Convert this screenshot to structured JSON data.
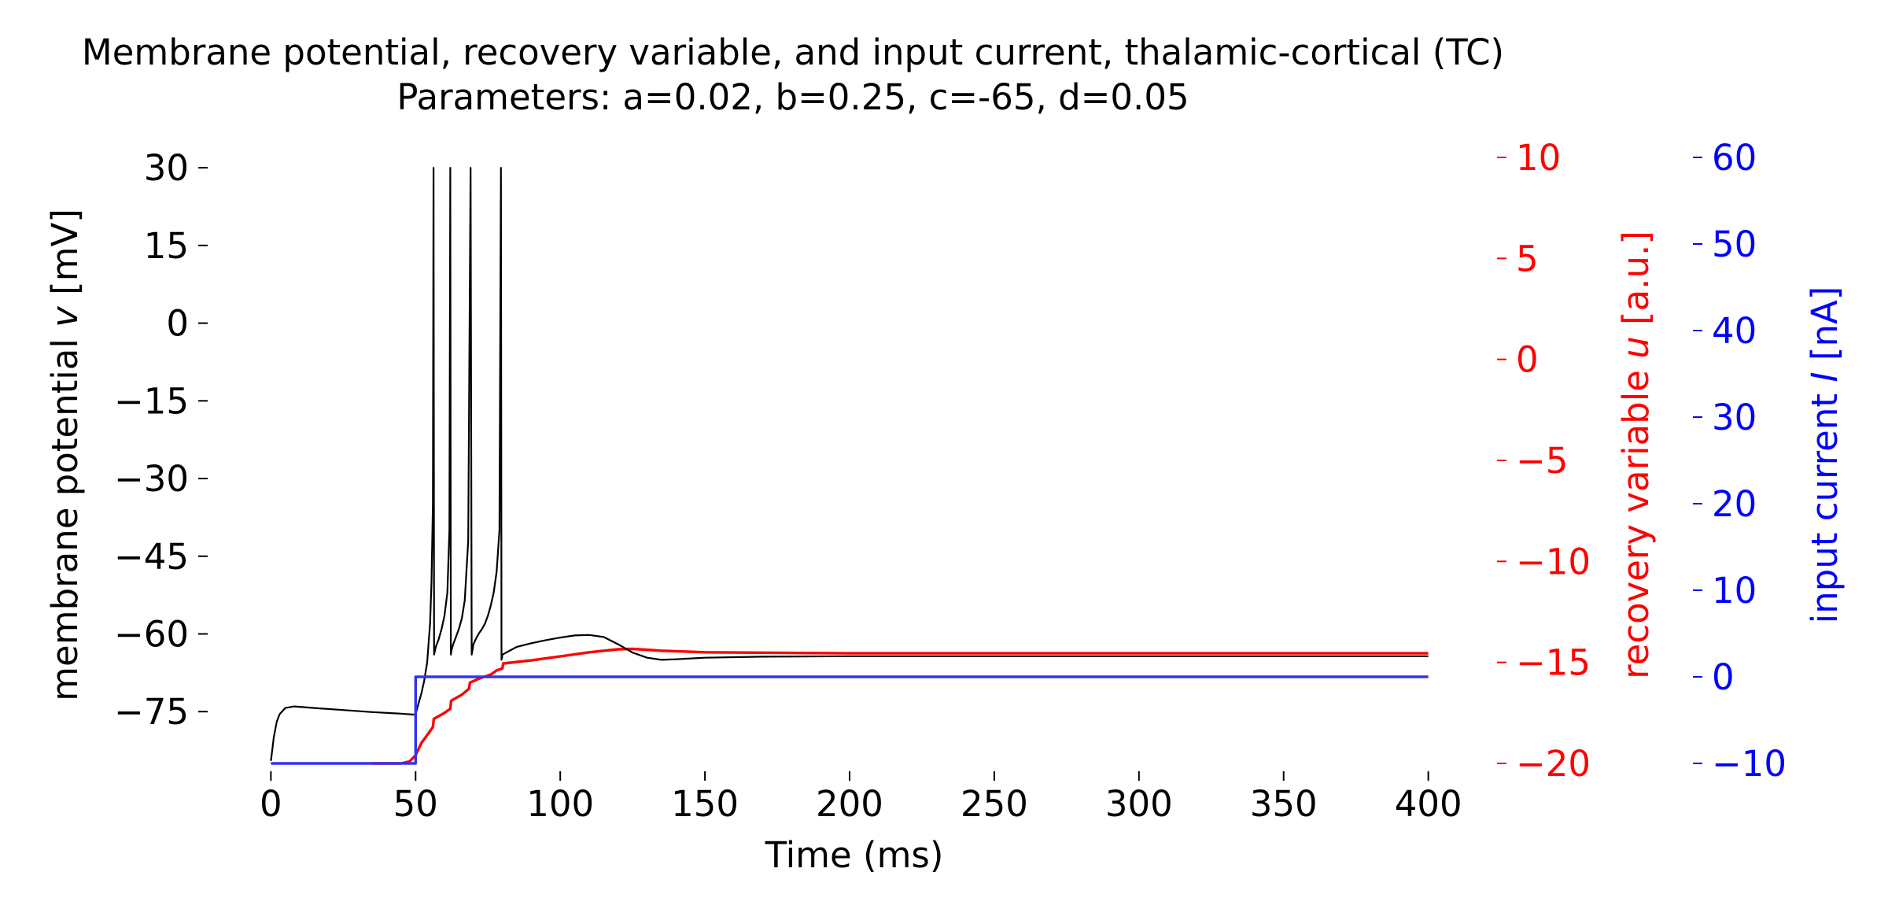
{
  "chart_data": {
    "type": "line",
    "title": "Membrane potential, recovery variable, and input current, thalamic-cortical (TC)",
    "subtitle": "Parameters: a=0.02, b=0.25, c=-65, d=0.05",
    "xlabel": "Time (ms)",
    "xlim": [
      -2,
      402
    ],
    "xticks": [
      0,
      50,
      100,
      150,
      200,
      250,
      300,
      350,
      400
    ],
    "grid": false,
    "axes": {
      "v": {
        "label_prefix": "membrane potential ",
        "label_var": "v",
        "label_suffix": " [mV]",
        "ylim": [
          -85,
          32
        ],
        "ticks": [
          30,
          15,
          0,
          -15,
          -30,
          -45,
          -60,
          -75
        ],
        "color": "#000000"
      },
      "u": {
        "label_prefix": "recovery variable ",
        "label_var": "u",
        "label_suffix": " [a.u.]",
        "ylim": [
          -20,
          10
        ],
        "ticks": [
          10,
          5,
          0,
          -5,
          -10,
          -15,
          -20
        ],
        "color": "#ff0000"
      },
      "I": {
        "label_prefix": "input current ",
        "label_var": "I",
        "label_suffix": " [nA]",
        "ylim": [
          -10,
          60
        ],
        "ticks": [
          60,
          50,
          40,
          30,
          20,
          10,
          0,
          -10
        ],
        "color": "#0000ff"
      }
    },
    "series": [
      {
        "name": "membrane potential v",
        "axis": "v",
        "color": "#000000",
        "x": [
          0,
          1,
          2,
          3,
          5,
          8,
          15,
          25,
          35,
          45,
          49.9,
          50,
          51,
          52,
          53,
          54,
          55,
          55.5,
          56,
          56.2,
          56.4,
          57,
          58,
          59,
          60,
          61,
          61.7,
          62,
          62.2,
          62.4,
          63,
          64,
          65,
          66,
          67,
          68.2,
          69,
          69.4,
          69.6,
          70,
          71,
          72,
          73,
          74,
          75,
          76,
          77,
          78,
          79,
          79.5,
          79.7,
          79.9,
          80,
          85,
          90,
          95,
          100,
          105,
          110,
          115,
          120,
          125,
          130,
          135,
          140,
          150,
          170,
          200,
          250,
          300,
          350,
          400
        ],
        "y": [
          -84.5,
          -80,
          -77,
          -75.5,
          -74.3,
          -74,
          -74.3,
          -74.7,
          -75.1,
          -75.4,
          -75.6,
          -75.5,
          -73.5,
          -71.5,
          -69,
          -65.5,
          -58,
          -50,
          -35,
          30,
          -64,
          -62.5,
          -61,
          -59,
          -56.5,
          -52,
          -40,
          30,
          -64,
          -63.2,
          -62,
          -60.5,
          -59,
          -57,
          -53.5,
          -42,
          30,
          -64,
          -63.3,
          -62,
          -60.8,
          -59.8,
          -59,
          -58,
          -56.5,
          -54.5,
          -52,
          -48,
          -40,
          30,
          -65,
          -64.5,
          -64,
          -62.5,
          -61.8,
          -61.2,
          -60.7,
          -60.3,
          -60.2,
          -60.6,
          -62,
          -63.6,
          -64.6,
          -65,
          -64.9,
          -64.6,
          -64.4,
          -64.3,
          -64.3,
          -64.3,
          -64.3,
          -64.3
        ],
        "width": 2.2
      },
      {
        "name": "recovery variable u",
        "axis": "u",
        "color": "#ff0000",
        "x": [
          35,
          45,
          48,
          50,
          52,
          54,
          56,
          56.3,
          60,
          62,
          62.3,
          66,
          68.5,
          68.8,
          72,
          76,
          78,
          80,
          80.3,
          90,
          100,
          110,
          120,
          125,
          135,
          150,
          200,
          250,
          300,
          350,
          400
        ],
        "y": [
          -20,
          -20,
          -19.9,
          -19.6,
          -19,
          -18.6,
          -18.2,
          -17.8,
          -17.5,
          -17.3,
          -16.9,
          -16.6,
          -16.3,
          -16,
          -15.8,
          -15.6,
          -15.4,
          -15.3,
          -15.05,
          -14.9,
          -14.7,
          -14.5,
          -14.35,
          -14.33,
          -14.42,
          -14.5,
          -14.55,
          -14.55,
          -14.55,
          -14.55,
          -14.55
        ],
        "width": 3.4
      },
      {
        "name": "input current I",
        "axis": "I",
        "color": "#3333ee",
        "x": [
          0,
          50,
          50,
          400
        ],
        "y": [
          -10,
          -10,
          0,
          0
        ],
        "width": 3.4
      }
    ]
  }
}
